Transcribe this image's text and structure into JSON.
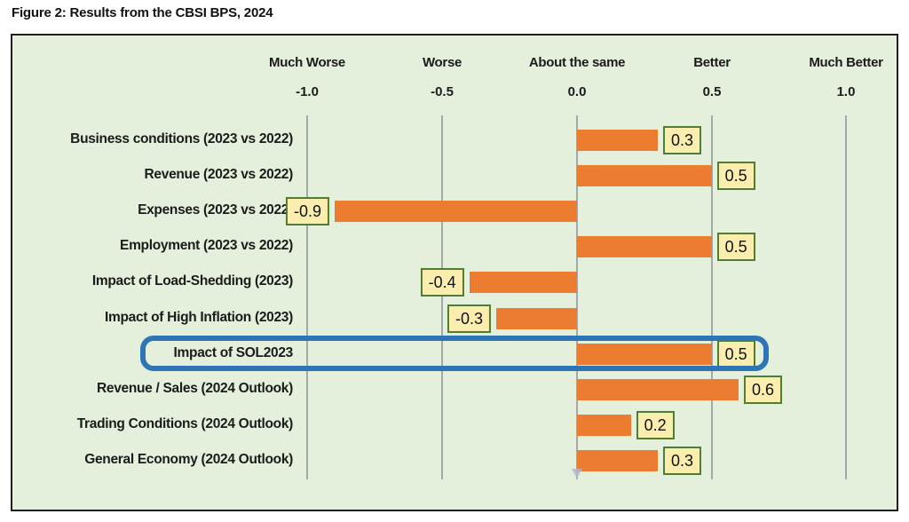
{
  "title": "Figure 2: Results from the CBSI BPS, 2024",
  "chart_data": {
    "type": "bar",
    "orientation": "horizontal",
    "title": "Figure 2: Results from the CBSI BPS, 2024",
    "xlim": [
      -1.0,
      1.0
    ],
    "grid": true,
    "scale_labels": [
      {
        "label": "Much Worse",
        "value": "-1.0"
      },
      {
        "label": "Worse",
        "value": "-0.5"
      },
      {
        "label": "About the same",
        "value": "0.0"
      },
      {
        "label": "Better",
        "value": "0.5"
      },
      {
        "label": "Much Better",
        "value": "1.0"
      }
    ],
    "rows": [
      {
        "label": "Business conditions (2023 vs 2022)",
        "value": 0.3,
        "display": "0.3",
        "highlighted": false
      },
      {
        "label": "Revenue (2023 vs 2022)",
        "value": 0.5,
        "display": "0.5",
        "highlighted": false
      },
      {
        "label": "Expenses (2023 vs 2022)",
        "value": -0.9,
        "display": "-0.9",
        "highlighted": false
      },
      {
        "label": "Employment (2023 vs 2022)",
        "value": 0.5,
        "display": "0.5",
        "highlighted": false
      },
      {
        "label": "Impact of Load-Shedding (2023)",
        "value": -0.4,
        "display": "-0.4",
        "highlighted": false
      },
      {
        "label": "Impact of High Inflation (2023)",
        "value": -0.3,
        "display": "-0.3",
        "highlighted": false
      },
      {
        "label": "Impact of SOL2023",
        "value": 0.5,
        "display": "0.5",
        "highlighted": true
      },
      {
        "label": "Revenue / Sales (2024 Outlook)",
        "value": 0.6,
        "display": "0.6",
        "highlighted": false
      },
      {
        "label": "Trading Conditions (2024 Outlook)",
        "value": 0.2,
        "display": "0.2",
        "highlighted": false
      },
      {
        "label": "General Economy (2024 Outlook)",
        "value": 0.3,
        "display": "0.3",
        "highlighted": false
      }
    ],
    "colors": {
      "bar_fill": "#EC7C30",
      "value_box_fill": "#FBEDAE",
      "value_box_border": "#4F7D36",
      "highlight_stroke": "#2E75B6",
      "plot_background": "#E4EFDC",
      "gridline": "#A3A8AB",
      "chart_border": "#1F1F1F"
    }
  }
}
